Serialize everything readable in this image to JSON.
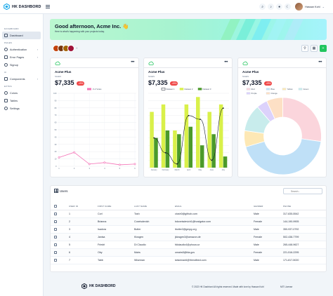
{
  "app": {
    "brand": "HK DASHBORD"
  },
  "header": {
    "user_name": "Hassan Kohl",
    "icons": [
      "search-icon",
      "bell-icon",
      "notification-icon",
      "moon-icon"
    ]
  },
  "sidebar": {
    "sections": [
      {
        "title": "DASHBOARD",
        "items": [
          {
            "label": "Dashboard",
            "icon": "dashboard-icon",
            "active": true
          }
        ]
      },
      {
        "title": "PAGES",
        "items": [
          {
            "label": "Authentication",
            "icon": "lock-icon",
            "chevron": true
          },
          {
            "label": "Error Pages",
            "icon": "warning-icon",
            "chevron": true
          },
          {
            "label": "Signup",
            "icon": "user-plus-icon"
          }
        ]
      },
      {
        "title": "UI",
        "items": [
          {
            "label": "Components",
            "icon": "puzzle-icon",
            "chevron": true
          }
        ]
      },
      {
        "title": "EXTRA",
        "items": [
          {
            "label": "Colors",
            "icon": "palette-icon"
          },
          {
            "label": "Tables",
            "icon": "table-icon"
          },
          {
            "label": "Settings",
            "icon": "gear-icon"
          }
        ]
      }
    ]
  },
  "welcome": {
    "title": "Good afternoon, Acme Inc. 👋",
    "subtitle": "Here is what's happening with your projects today."
  },
  "avatars": {
    "plus": "+"
  },
  "cards": [
    {
      "name": "Acme Plus",
      "label": "SALES",
      "value": "$7,335",
      "badge": "-49%"
    },
    {
      "name": "Acme Plus",
      "label": "SALES",
      "value": "$7,335",
      "badge": "-49%"
    },
    {
      "name": "Acme Plus",
      "label": "SALES",
      "value": "$7,335",
      "badge": "-49%"
    }
  ],
  "chart_data": [
    {
      "type": "line",
      "series": [
        {
          "name": "# of Votes",
          "values": [
            12,
            19,
            3,
            5,
            2,
            3
          ]
        }
      ],
      "x": [
        1,
        2,
        3,
        4,
        5,
        6
      ],
      "ylim": [
        0,
        100
      ],
      "yticks": [
        0,
        10,
        20,
        30,
        40,
        50,
        60,
        70,
        80,
        90,
        100
      ],
      "legend": "top",
      "colors": [
        "#f472b6"
      ]
    },
    {
      "type": "bar",
      "categories": [
        "January",
        "February",
        "March",
        "April",
        "May",
        "June",
        "July"
      ],
      "series": [
        {
          "name": "Dataset 1",
          "kind": "line",
          "values": [
            40,
            20,
            5,
            70,
            65,
            10,
            80
          ]
        },
        {
          "name": "Dataset 2",
          "kind": "bar",
          "values": [
            75,
            85,
            50,
            85,
            95,
            75,
            85
          ]
        },
        {
          "name": "Dataset 3",
          "kind": "bar",
          "values": [
            40,
            50,
            45,
            55,
            30,
            45,
            15
          ]
        }
      ],
      "ylim": [
        0,
        100
      ],
      "legend": "top",
      "colors": [
        "#111827",
        "#d9f04a",
        "#4b9a2a"
      ]
    },
    {
      "type": "pie",
      "categories": [
        "Red",
        "Blue",
        "Yellow",
        "Green",
        "Purple",
        "Orange"
      ],
      "values": [
        12,
        19,
        3,
        5,
        2,
        3
      ],
      "doughnut": true,
      "legend": "top",
      "colors": [
        "#fbd5dc",
        "#bfe0f7",
        "#fde8b5",
        "#c8ecec",
        "#dcd2fb",
        "#fde0c5"
      ]
    }
  ],
  "users": {
    "title": "Users",
    "search_placeholder": "Search...",
    "columns": [
      "USER ID",
      "FIRST NAME",
      "LAST NAME",
      "EMAIL",
      "GENDER",
      "PHONE"
    ],
    "rows": [
      [
        "1",
        "Corl",
        "Tosh",
        "ctosh0@github.com",
        "Male",
        "317-835-5542"
      ],
      [
        "2",
        "Brianna",
        "Coxeisdevich",
        "bdoxeisdevich1@hostgator.com",
        "Female",
        "144-190-9905"
      ],
      [
        "3",
        "Isadora",
        "Botler",
        "ibotler2@gmpg.org",
        "Male",
        "350-937-0792"
      ],
      [
        "4",
        "Janisa",
        "Klosgen",
        "jklosgen3@amazon.de",
        "Female",
        "502-438-7799"
      ],
      [
        "5",
        "Friedri",
        "Di Claudio",
        "fdiclaudio4@phoca.cz",
        "Male",
        "265-448-9627"
      ],
      [
        "6",
        "Oby",
        "Mairs",
        "omairs5@fda.gov",
        "Female",
        "221-516-2295"
      ],
      [
        "7",
        "Tabb",
        "Wiseman",
        "twiseman6@friendfeed.com",
        "Male",
        "171-817-5020"
      ]
    ]
  },
  "footer": {
    "brand": "HK DASHBORD",
    "copyright": "© 2022 HK Dashbord All rights reserved. Made with love by Hassan Kohl",
    "license": "MIT License"
  },
  "colors": {
    "accent": "#22c55e",
    "badge": "#ef4444"
  }
}
